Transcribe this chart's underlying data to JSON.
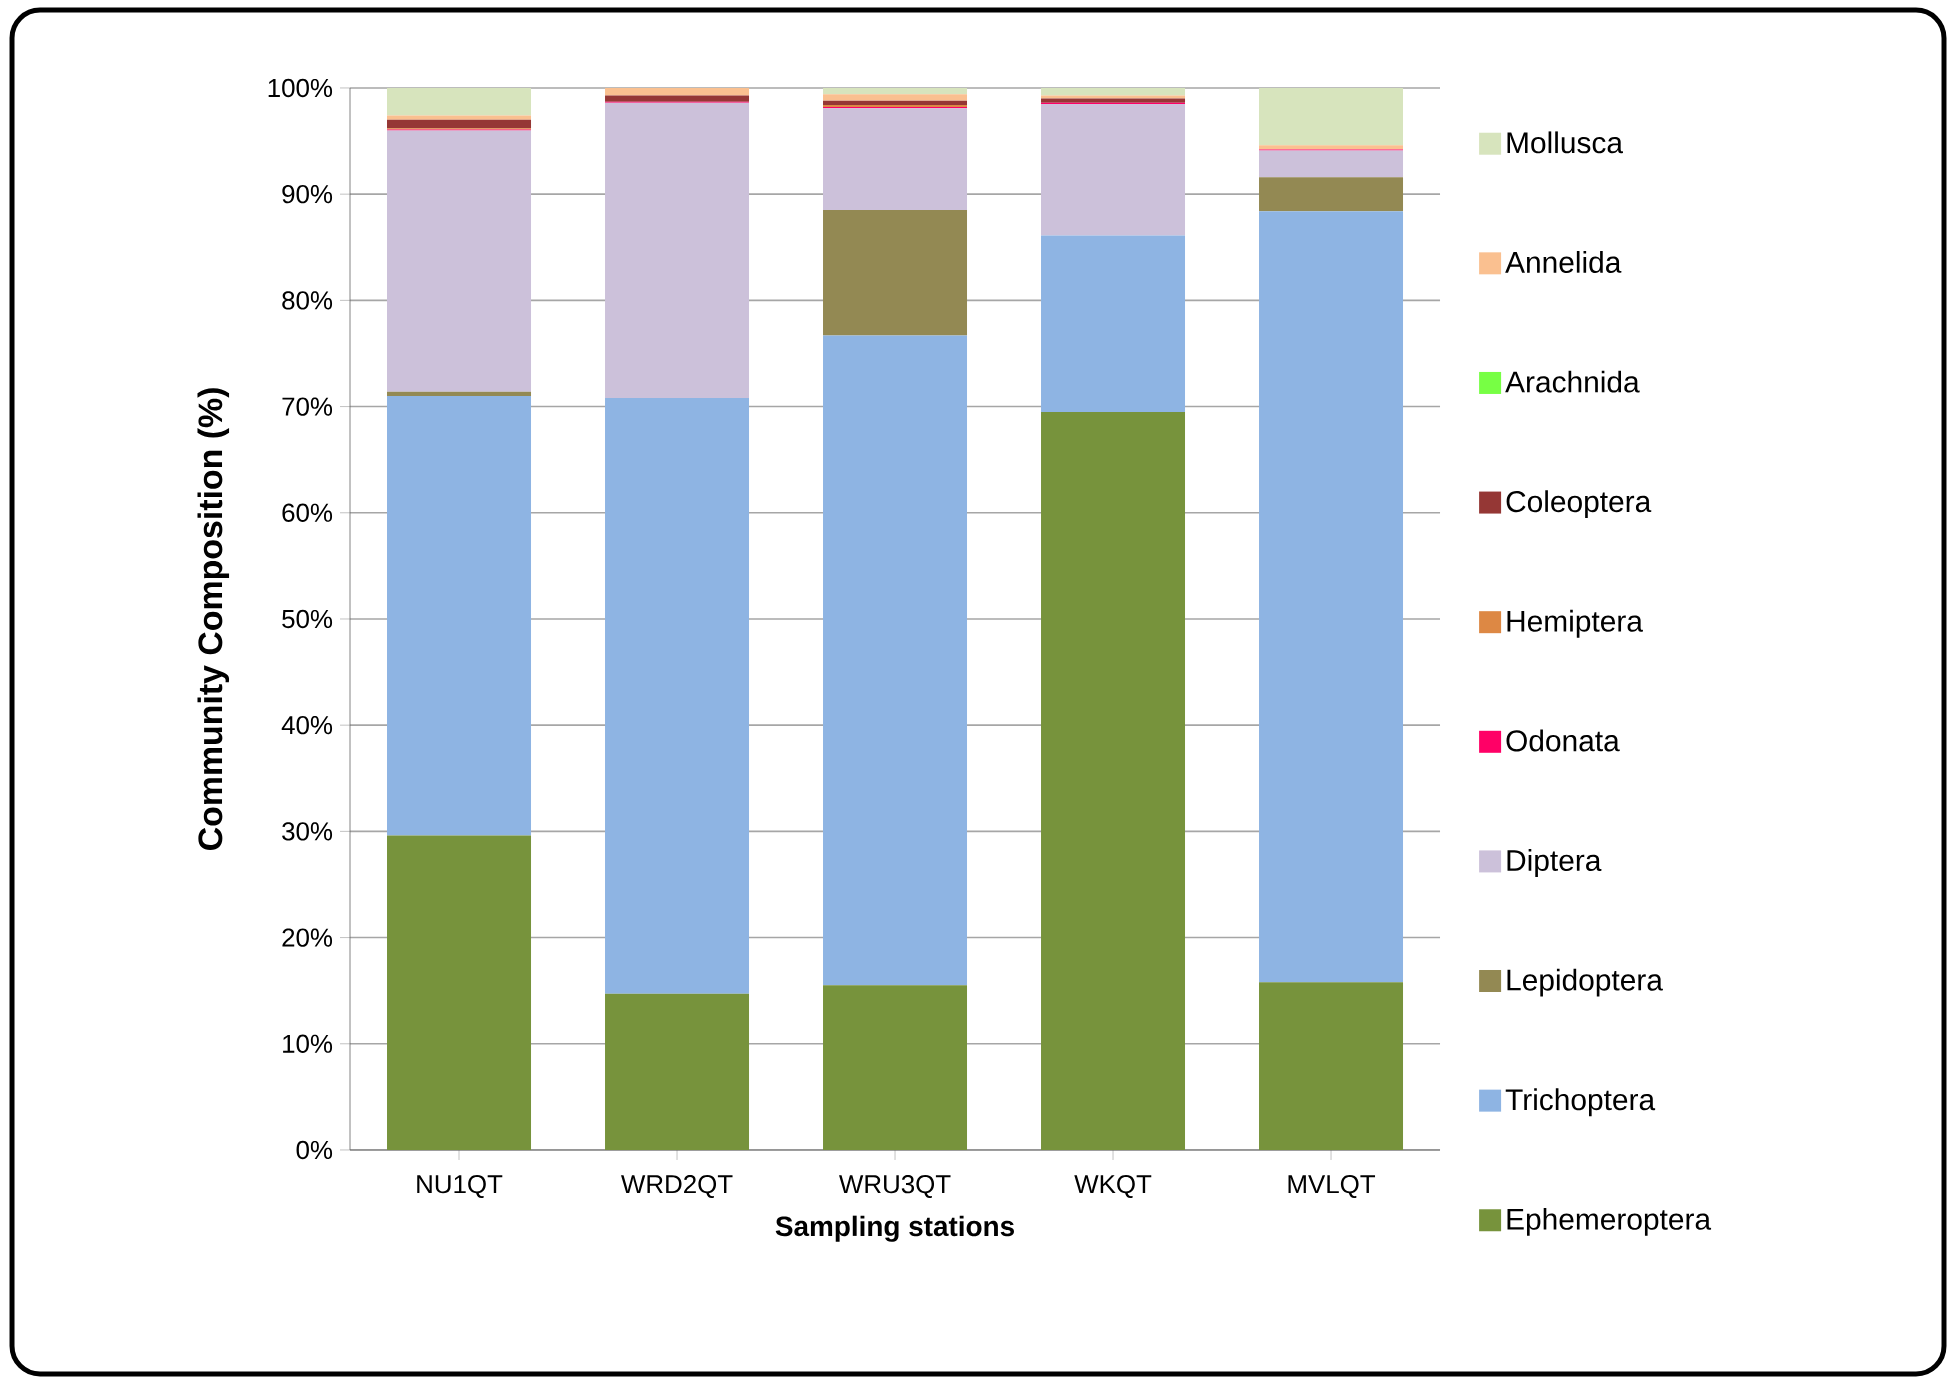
{
  "chart_data": {
    "type": "bar",
    "stacked": true,
    "xlabel": "Sampling stations",
    "ylabel": "Community  Composition (%)",
    "categories": [
      "NU1QT",
      "WRD2QT",
      "WRU3QT",
      "WKQT",
      "MVLQT"
    ],
    "ylim": [
      0,
      100
    ],
    "yticks": [
      {
        "value": 0,
        "label": "0%"
      },
      {
        "value": 10,
        "label": "10%"
      },
      {
        "value": 20,
        "label": "20%"
      },
      {
        "value": 30,
        "label": "30%"
      },
      {
        "value": 40,
        "label": "40%"
      },
      {
        "value": 50,
        "label": "50%"
      },
      {
        "value": 60,
        "label": "60%"
      },
      {
        "value": 70,
        "label": "70%"
      },
      {
        "value": 80,
        "label": "80%"
      },
      {
        "value": 90,
        "label": "90%"
      },
      {
        "value": 100,
        "label": "100%"
      }
    ],
    "grid": "y",
    "legend": "right",
    "series": [
      {
        "name": "Ephemeroptera",
        "color": "#77933c",
        "values": [
          29.6,
          14.7,
          15.5,
          69.5,
          15.8
        ]
      },
      {
        "name": "Trichoptera",
        "color": "#8eb4e3",
        "values": [
          41.4,
          56.1,
          61.2,
          16.6,
          72.6
        ]
      },
      {
        "name": "Lepidoptera",
        "color": "#938953",
        "values": [
          0.4,
          0,
          11.8,
          0,
          3.2
        ]
      },
      {
        "name": "Diptera",
        "color": "#ccc1da",
        "values": [
          24.6,
          27.8,
          9.6,
          12.4,
          2.5
        ]
      },
      {
        "name": "Odonata",
        "color": "#ff0066",
        "values": [
          0.1,
          0.1,
          0.1,
          0.1,
          0.1
        ]
      },
      {
        "name": "Hemiptera",
        "color": "#dd8844",
        "values": [
          0.1,
          0,
          0.2,
          0,
          0
        ]
      },
      {
        "name": "Coleoptera",
        "color": "#953735",
        "values": [
          0.8,
          0.6,
          0.4,
          0.4,
          0
        ]
      },
      {
        "name": "Arachnida",
        "color": "#77ff44",
        "values": [
          0,
          0,
          0,
          0,
          0
        ]
      },
      {
        "name": "Annelida",
        "color": "#fac090",
        "values": [
          0.4,
          0.7,
          0.6,
          0.3,
          0.4
        ]
      },
      {
        "name": "Mollusca",
        "color": "#d7e4bd",
        "values": [
          2.6,
          0,
          0.6,
          0.7,
          5.4
        ]
      }
    ]
  }
}
